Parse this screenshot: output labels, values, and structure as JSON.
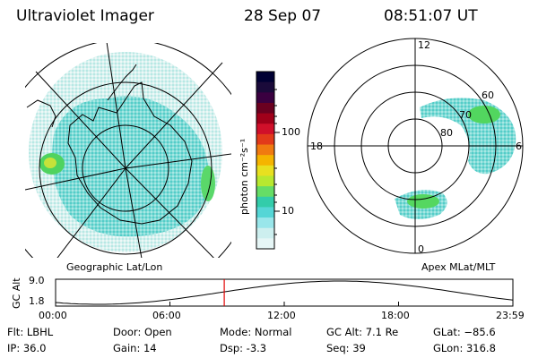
{
  "header": {
    "title": "Ultraviolet Imager",
    "date": "28 Sep 07",
    "time": "08:51:07 UT"
  },
  "maps": {
    "left_caption": "Geographic Lat/Lon",
    "right_caption": "Apex MLat/MLT",
    "mlt_labels": {
      "top": "12",
      "left": "18",
      "right": "6",
      "bottom": "0"
    },
    "mlat_labels": [
      "60",
      "70",
      "80"
    ]
  },
  "colorbar": {
    "unit_label": "photon cm⁻²s⁻¹",
    "ticks": [
      "100",
      "10"
    ],
    "colors": [
      "#000033",
      "#1a0a3a",
      "#3a0040",
      "#6a0020",
      "#a0001a",
      "#d0102a",
      "#e23a1a",
      "#f07a10",
      "#f5b400",
      "#e8e020",
      "#b8e830",
      "#66dd66",
      "#33ccaa",
      "#55d6d6",
      "#99e6ea",
      "#cdefef",
      "#e6f6f6"
    ]
  },
  "timeline": {
    "y_axis_label": "GC Alt",
    "y_ticks": [
      "9.0",
      "1.8"
    ],
    "x_ticks": [
      "00:00",
      "06:00",
      "12:00",
      "18:00",
      "23:59"
    ],
    "current_time_fraction": 0.3688
  },
  "info": {
    "flt": "Flt: LBHL",
    "ip": "IP: 36.0",
    "door": "Door: Open",
    "gain": "Gain: 14",
    "mode": "Mode: Normal",
    "dsp": "Dsp:   -3.3",
    "gc_alt": "GC Alt: 7.1 Re",
    "seq": "Seq: 39",
    "glat": "GLat: −85.6",
    "glon": "GLon: 316.8"
  }
}
